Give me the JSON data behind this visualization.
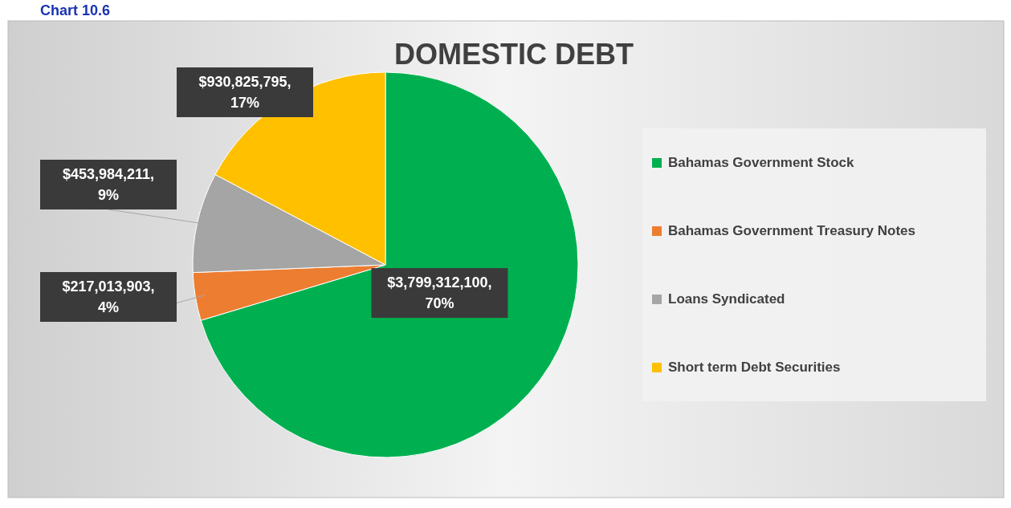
{
  "chart_data": {
    "type": "pie",
    "title": "DOMESTIC DEBT",
    "annotations": [
      "Chart 10.6"
    ],
    "categories": [
      "Bahamas Government Stock",
      "Bahamas Government Treasury Notes",
      "Loans Syndicated",
      "Short term Debt Securities"
    ],
    "values": [
      3799312100,
      217013903,
      453984211,
      930825795
    ],
    "colors": [
      "#00b050",
      "#ed7d31",
      "#a5a5a5",
      "#ffc000"
    ],
    "value_labels": [
      "$3,799,312,100, 70%",
      "$217,013,903, 4%",
      "$453,984,211, 9%",
      "$930,825,795, 17%"
    ],
    "legend": "right"
  }
}
